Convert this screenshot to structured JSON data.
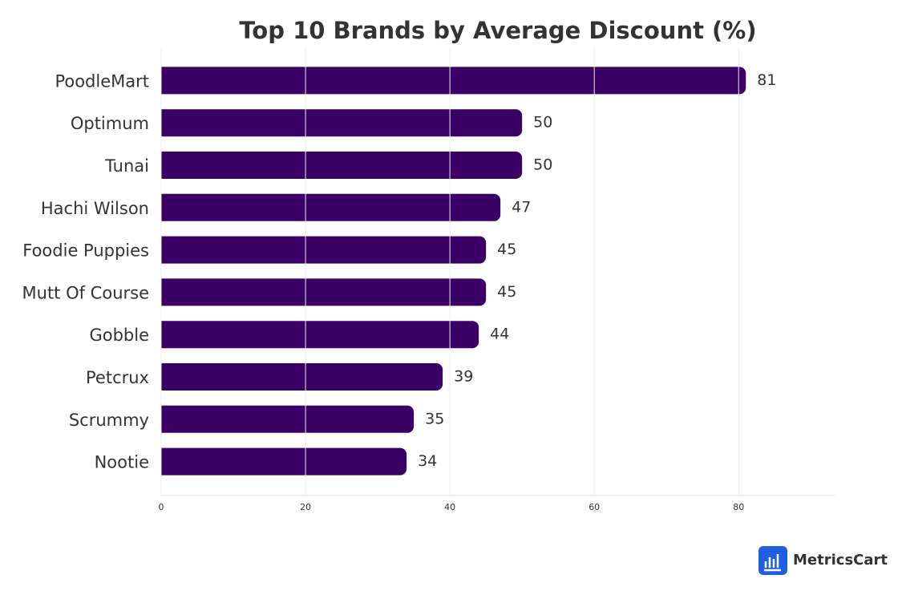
{
  "chart_data": {
    "type": "hbar",
    "title": "Top 10 Brands by Average Discount (%)",
    "categories": [
      "PoodleMart",
      "Optimum",
      "Tunai",
      "Hachi Wilson",
      "Foodie Puppies",
      "Mutt Of Course",
      "Gobble",
      "Petcrux",
      "Scrummy",
      "Nootie"
    ],
    "values": [
      81,
      50,
      50,
      47,
      45,
      45,
      44,
      39,
      35,
      34
    ],
    "color": "#3b0066",
    "xlim": [
      0,
      93.3
    ],
    "xticks": [
      0,
      20,
      40,
      60,
      80
    ],
    "grid": true,
    "logo_text": "MetricsCart"
  }
}
